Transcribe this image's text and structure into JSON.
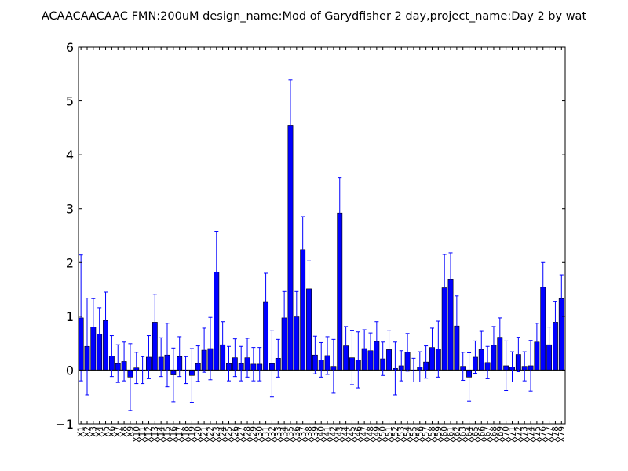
{
  "chart_data": {
    "type": "bar",
    "title": "ACAACAACAAC  FMN:200uM  design_name:Mod of Garydfisher 2 day,project_name:Day 2 by wat",
    "xlabel": "",
    "ylabel": "",
    "ylim": [
      -1,
      6
    ],
    "yticks": [
      -1,
      0,
      1,
      2,
      3,
      4,
      5,
      6
    ],
    "ytick_labels": [
      "−1",
      "0",
      "1",
      "2",
      "3",
      "4",
      "5",
      "6"
    ],
    "grid": false,
    "legend": "none",
    "bar_color": "#0000ff",
    "error_color": "#0000ff",
    "categories": [
      "X1",
      "X2",
      "X3",
      "X4",
      "X5",
      "X6",
      "X7",
      "X8",
      "X9",
      "X10",
      "X11",
      "X12",
      "X13",
      "X14",
      "X15",
      "X16",
      "X17",
      "X18",
      "X19",
      "X20",
      "X21",
      "X22",
      "X23",
      "X24",
      "X25",
      "X26",
      "X27",
      "X28",
      "X29",
      "X30",
      "X31",
      "X32",
      "X33",
      "X34",
      "X35",
      "X36",
      "X37",
      "X38",
      "X39",
      "X40",
      "X41",
      "X42",
      "X43",
      "X44",
      "X45",
      "X46",
      "X47",
      "X48",
      "X49",
      "X50",
      "X51",
      "X52",
      "X53",
      "X54",
      "X55",
      "X56",
      "X57",
      "X58",
      "X59",
      "X60",
      "X61",
      "X62",
      "X63",
      "X64",
      "X65",
      "X66",
      "X67",
      "X68",
      "X69",
      "X70",
      "X71",
      "X72",
      "X73",
      "X74",
      "X75",
      "X76",
      "X77",
      "X78",
      "X79"
    ],
    "values": [
      0.97,
      0.44,
      0.8,
      0.67,
      0.92,
      0.26,
      0.12,
      0.16,
      -0.13,
      0.04,
      0.0,
      0.24,
      0.89,
      0.24,
      0.28,
      -0.09,
      0.25,
      0.0,
      -0.1,
      0.12,
      0.37,
      0.4,
      1.82,
      0.47,
      0.12,
      0.23,
      0.12,
      0.23,
      0.11,
      0.11,
      1.26,
      0.12,
      0.22,
      0.97,
      4.55,
      0.99,
      2.24,
      1.51,
      0.28,
      0.19,
      0.27,
      0.07,
      2.92,
      0.45,
      0.23,
      0.19,
      0.4,
      0.36,
      0.53,
      0.21,
      0.38,
      0.03,
      0.08,
      0.33,
      0.0,
      0.06,
      0.15,
      0.42,
      0.39,
      1.53,
      1.68,
      0.82,
      0.07,
      -0.13,
      0.24,
      0.38,
      0.14,
      0.46,
      0.61,
      0.08,
      0.06,
      0.29,
      0.07,
      0.08,
      0.52,
      1.54,
      0.47,
      0.89,
      1.33
    ],
    "errors": [
      1.17,
      0.9,
      0.53,
      0.49,
      0.53,
      0.38,
      0.35,
      0.36,
      0.62,
      0.29,
      0.25,
      0.4,
      0.52,
      0.36,
      0.59,
      0.5,
      0.37,
      0.25,
      0.5,
      0.33,
      0.41,
      0.58,
      0.76,
      0.43,
      0.32,
      0.35,
      0.32,
      0.36,
      0.31,
      0.31,
      0.54,
      0.62,
      0.35,
      0.49,
      0.84,
      0.47,
      0.61,
      0.52,
      0.35,
      0.32,
      0.35,
      0.5,
      0.65,
      0.36,
      0.5,
      0.52,
      0.35,
      0.33,
      0.37,
      0.31,
      0.36,
      0.49,
      0.28,
      0.35,
      0.22,
      0.28,
      0.3,
      0.36,
      0.52,
      0.62,
      0.5,
      0.56,
      0.26,
      0.45,
      0.3,
      0.34,
      0.3,
      0.35,
      0.36,
      0.46,
      0.28,
      0.32,
      0.27,
      0.47,
      0.35,
      0.46,
      0.33,
      0.38,
      0.44
    ]
  }
}
